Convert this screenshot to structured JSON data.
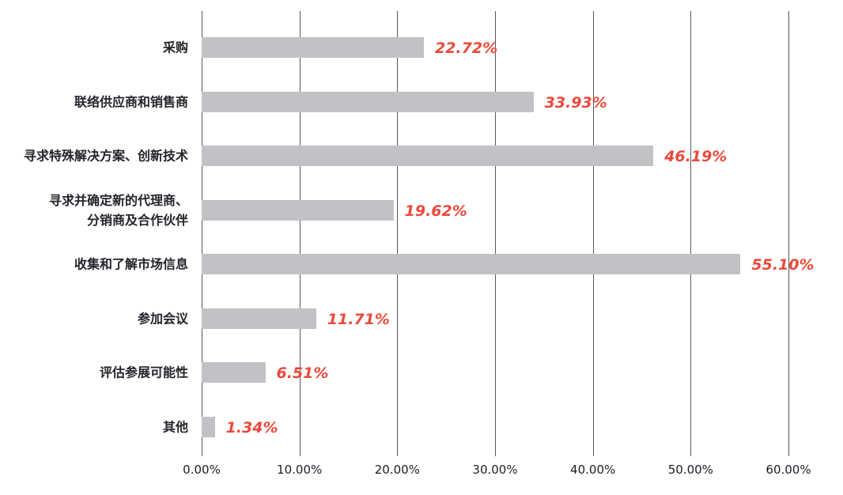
{
  "chart_data": {
    "type": "bar",
    "orientation": "horizontal",
    "title": "",
    "categories": [
      "采购",
      "联络供应商和销售商",
      "寻求特殊解决方案、创新技术",
      "寻求并确定新的代理商、\n分销商及合作伙伴",
      "收集和了解市场信息",
      "参加会议",
      "评估参展可能性",
      "其他"
    ],
    "values": [
      22.72,
      33.93,
      46.19,
      19.62,
      55.1,
      11.71,
      6.51,
      1.34
    ],
    "value_labels": [
      "22.72%",
      "33.93%",
      "46.19%",
      "19.62%",
      "55.10%",
      "11.71%",
      "6.51%",
      "1.34%"
    ],
    "x_ticks": [
      {
        "label": "0.00%",
        "value": 0
      },
      {
        "label": "10.00%",
        "value": 10
      },
      {
        "label": "20.00%",
        "value": 20
      },
      {
        "label": "30.00%",
        "value": 30
      },
      {
        "label": "40.00%",
        "value": 40
      },
      {
        "label": "50.00%",
        "value": 50
      },
      {
        "label": "60.00%",
        "value": 60
      }
    ],
    "xlim": [
      0,
      60
    ],
    "xlabel": "",
    "ylabel": "",
    "grid": "vertical",
    "legend": "none",
    "colors": {
      "bar": "#c1c2c6",
      "value_label": "#ea4a3b",
      "category_label": "#23232b",
      "gridline": "#58585c",
      "axis_tick_label": "#1d1d26",
      "background": "#ffffff"
    }
  }
}
